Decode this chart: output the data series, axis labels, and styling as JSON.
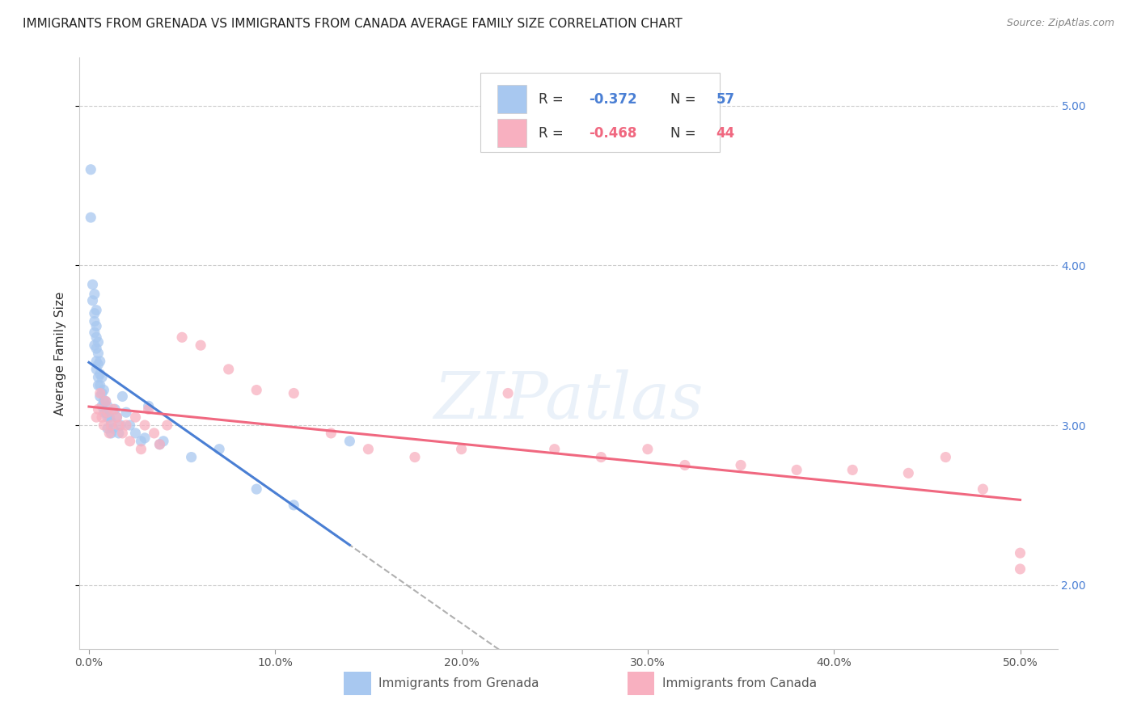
{
  "title": "IMMIGRANTS FROM GRENADA VS IMMIGRANTS FROM CANADA AVERAGE FAMILY SIZE CORRELATION CHART",
  "source": "Source: ZipAtlas.com",
  "ylabel": "Average Family Size",
  "xlim": [
    -0.005,
    0.52
  ],
  "ylim": [
    1.6,
    5.3
  ],
  "background_color": "#ffffff",
  "grid_color": "#cccccc",
  "grenada_color": "#a8c8f0",
  "canada_color": "#f8b0c0",
  "grenada_line_color": "#4a7fd4",
  "canada_line_color": "#f06880",
  "dashed_line_color": "#b0b0b0",
  "scatter_size": 90,
  "grenada_x": [
    0.001,
    0.001,
    0.002,
    0.002,
    0.003,
    0.003,
    0.003,
    0.003,
    0.003,
    0.004,
    0.004,
    0.004,
    0.004,
    0.004,
    0.004,
    0.005,
    0.005,
    0.005,
    0.005,
    0.005,
    0.006,
    0.006,
    0.006,
    0.006,
    0.007,
    0.007,
    0.007,
    0.008,
    0.008,
    0.008,
    0.009,
    0.009,
    0.01,
    0.01,
    0.01,
    0.011,
    0.012,
    0.012,
    0.013,
    0.014,
    0.015,
    0.016,
    0.017,
    0.018,
    0.02,
    0.022,
    0.025,
    0.028,
    0.03,
    0.032,
    0.038,
    0.04,
    0.055,
    0.07,
    0.09,
    0.11,
    0.14
  ],
  "grenada_y": [
    4.6,
    4.3,
    3.88,
    3.78,
    3.82,
    3.7,
    3.65,
    3.58,
    3.5,
    3.72,
    3.62,
    3.55,
    3.48,
    3.4,
    3.35,
    3.52,
    3.45,
    3.38,
    3.3,
    3.25,
    3.4,
    3.32,
    3.25,
    3.18,
    3.3,
    3.2,
    3.12,
    3.22,
    3.15,
    3.08,
    3.15,
    3.08,
    3.12,
    3.05,
    2.98,
    3.05,
    3.02,
    2.95,
    2.98,
    3.1,
    3.05,
    2.95,
    3.0,
    3.18,
    3.08,
    3.0,
    2.95,
    2.9,
    2.92,
    3.12,
    2.88,
    2.9,
    2.8,
    2.85,
    2.6,
    2.5,
    2.9
  ],
  "canada_x": [
    0.004,
    0.005,
    0.006,
    0.007,
    0.008,
    0.009,
    0.01,
    0.011,
    0.012,
    0.013,
    0.015,
    0.016,
    0.018,
    0.02,
    0.022,
    0.025,
    0.028,
    0.03,
    0.032,
    0.035,
    0.038,
    0.042,
    0.05,
    0.06,
    0.075,
    0.09,
    0.11,
    0.13,
    0.15,
    0.175,
    0.2,
    0.225,
    0.25,
    0.275,
    0.3,
    0.32,
    0.35,
    0.38,
    0.41,
    0.44,
    0.46,
    0.48,
    0.5,
    0.5
  ],
  "canada_y": [
    3.05,
    3.1,
    3.2,
    3.05,
    3.0,
    3.15,
    3.08,
    2.95,
    3.0,
    3.1,
    3.05,
    3.0,
    2.95,
    3.0,
    2.9,
    3.05,
    2.85,
    3.0,
    3.1,
    2.95,
    2.88,
    3.0,
    3.55,
    3.5,
    3.35,
    3.22,
    3.2,
    2.95,
    2.85,
    2.8,
    2.85,
    3.2,
    2.85,
    2.8,
    2.85,
    2.75,
    2.75,
    2.72,
    2.72,
    2.7,
    2.8,
    2.6,
    2.1,
    2.2
  ],
  "title_fontsize": 11,
  "axis_label_fontsize": 11,
  "tick_fontsize": 10,
  "legend_fontsize": 12
}
